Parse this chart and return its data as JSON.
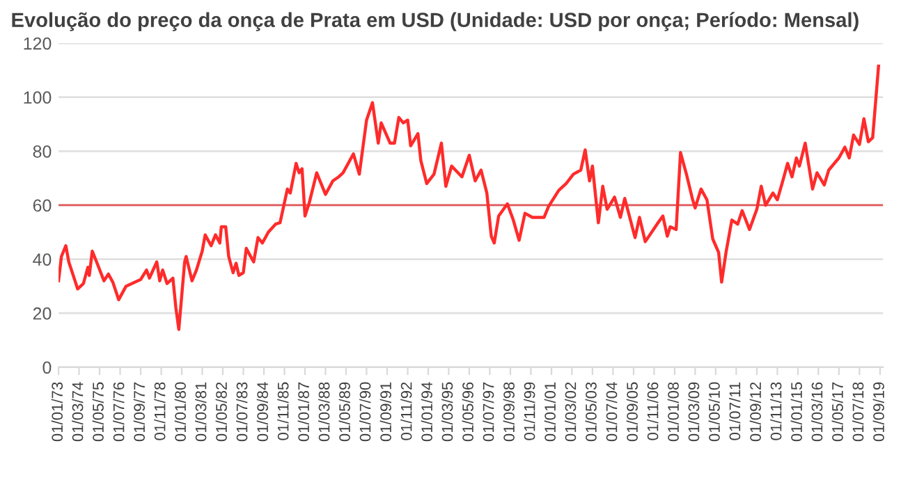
{
  "chart_data": {
    "type": "line",
    "title": "Evolução do preço da onça de Prata em USD (Unidade: USD por onça; Período: Mensal)",
    "x": [
      "1973-01",
      "1973-03",
      "1973-06",
      "1973-08",
      "1973-11",
      "1974-02",
      "1974-06",
      "1974-09",
      "1974-10",
      "1974-12",
      "1975-03",
      "1975-08",
      "1975-11",
      "1976-02",
      "1976-06",
      "1976-11",
      "1977-09",
      "1978-01",
      "1978-03",
      "1978-08",
      "1978-10",
      "1978-12",
      "1979-03",
      "1979-07",
      "1979-09",
      "1979-11",
      "1980-03",
      "1980-04",
      "1980-08",
      "1980-11",
      "1981-03",
      "1981-05",
      "1981-09",
      "1981-12",
      "1982-03",
      "1982-04",
      "1982-07",
      "1982-09",
      "1982-12",
      "1983-02",
      "1983-04",
      "1983-07",
      "1983-09",
      "1983-12",
      "1984-02",
      "1984-05",
      "1984-08",
      "1984-12",
      "1985-05",
      "1985-08",
      "1986-01",
      "1986-03",
      "1986-07",
      "1986-09",
      "1986-11",
      "1987-01",
      "1987-04",
      "1987-09",
      "1988-03",
      "1988-08",
      "1988-12",
      "1989-03",
      "1989-10",
      "1990-02",
      "1990-07",
      "1990-11",
      "1991-03",
      "1991-05",
      "1991-11",
      "1992-02",
      "1992-05",
      "1992-08",
      "1992-11",
      "1993-01",
      "1993-06",
      "1993-08",
      "1993-12",
      "1994-05",
      "1994-10",
      "1995-01",
      "1995-05",
      "1995-12",
      "1996-05",
      "1996-09",
      "1997-01",
      "1997-05",
      "1997-08",
      "1997-10",
      "1998-01",
      "1998-07",
      "1998-11",
      "1999-03",
      "1999-07",
      "1999-12",
      "2000-08",
      "2000-11",
      "2001-06",
      "2001-11",
      "2002-04",
      "2002-09",
      "2002-12",
      "2003-03",
      "2003-05",
      "2003-09",
      "2003-12",
      "2004-03",
      "2004-08",
      "2004-12",
      "2005-03",
      "2005-10",
      "2006-01",
      "2006-05",
      "2007-01",
      "2007-05",
      "2007-08",
      "2007-10",
      "2008-02",
      "2008-05",
      "2008-09",
      "2009-01",
      "2009-03",
      "2009-07",
      "2009-11",
      "2010-03",
      "2010-07",
      "2010-09",
      "2010-12",
      "2011-04",
      "2011-08",
      "2011-11",
      "2012-04",
      "2012-09",
      "2012-12",
      "2013-03",
      "2013-08",
      "2013-11",
      "2014-03",
      "2014-06",
      "2014-09",
      "2014-12",
      "2015-02",
      "2015-06",
      "2015-11",
      "2016-02",
      "2016-07",
      "2016-10",
      "2017-05",
      "2017-09",
      "2017-12",
      "2018-03",
      "2018-07",
      "2018-10",
      "2019-01",
      "2019-04",
      "2019-08"
    ],
    "series": [
      {
        "color": "#ff2b2b",
        "values": [
          32,
          41,
          45,
          39,
          34,
          29,
          31,
          37,
          34,
          43,
          39,
          32,
          34.5,
          31.5,
          25,
          30,
          32.5,
          36,
          33,
          39,
          32,
          36,
          31,
          33,
          22,
          14,
          39,
          41,
          32,
          36,
          43,
          49,
          45,
          49,
          46,
          52,
          52,
          41,
          35,
          38.5,
          34,
          35,
          44,
          41,
          39,
          48,
          46,
          50,
          53,
          53.5,
          66,
          64.5,
          75.5,
          72,
          73.5,
          56,
          61,
          72,
          64,
          69,
          70.5,
          72,
          79,
          71.5,
          91.5,
          98,
          83,
          90.5,
          83,
          83,
          92.5,
          90.5,
          91.5,
          82,
          86.5,
          76.5,
          68,
          71.5,
          83,
          67,
          74.5,
          70.5,
          78.5,
          69,
          73,
          64.5,
          48.5,
          46,
          56,
          60.5,
          54.5,
          47,
          57,
          55.5,
          55.5,
          59.5,
          65.5,
          68,
          71.5,
          73,
          80.5,
          69,
          74.5,
          53.5,
          67,
          58.5,
          63,
          55.5,
          62.5,
          48,
          55.5,
          46.5,
          53,
          56,
          48.5,
          52,
          51,
          79.5,
          71.5,
          62.5,
          59,
          66,
          62,
          47.5,
          42.5,
          31.5,
          42.5,
          54.5,
          53,
          58,
          51,
          58.5,
          67,
          60,
          64.5,
          62,
          69.5,
          75.5,
          70.5,
          77.5,
          74.5,
          83,
          66,
          72,
          67.5,
          73,
          77.5,
          81.5,
          77.5,
          86,
          82.5,
          92,
          83.5,
          85,
          111.5
        ]
      }
    ],
    "xlim": [
      "1973-01",
      "2019-11"
    ],
    "xticks": [
      {
        "value": "1973-01",
        "label": "01/01/73"
      },
      {
        "value": "1974-03",
        "label": "01/03/74"
      },
      {
        "value": "1975-05",
        "label": "01/05/75"
      },
      {
        "value": "1976-07",
        "label": "01/07/76"
      },
      {
        "value": "1977-09",
        "label": "01/09/77"
      },
      {
        "value": "1978-11",
        "label": "01/11/78"
      },
      {
        "value": "1980-01",
        "label": "01/01/80"
      },
      {
        "value": "1981-03",
        "label": "01/03/81"
      },
      {
        "value": "1982-05",
        "label": "01/05/82"
      },
      {
        "value": "1983-07",
        "label": "01/07/83"
      },
      {
        "value": "1984-09",
        "label": "01/09/84"
      },
      {
        "value": "1985-11",
        "label": "01/11/85"
      },
      {
        "value": "1987-01",
        "label": "01/01/87"
      },
      {
        "value": "1988-03",
        "label": "01/03/88"
      },
      {
        "value": "1989-05",
        "label": "01/05/89"
      },
      {
        "value": "1990-07",
        "label": "01/07/90"
      },
      {
        "value": "1991-09",
        "label": "01/09/91"
      },
      {
        "value": "1992-11",
        "label": "01/11/92"
      },
      {
        "value": "1994-01",
        "label": "01/01/94"
      },
      {
        "value": "1995-03",
        "label": "01/03/95"
      },
      {
        "value": "1996-05",
        "label": "01/05/96"
      },
      {
        "value": "1997-07",
        "label": "01/07/97"
      },
      {
        "value": "1998-09",
        "label": "01/09/98"
      },
      {
        "value": "1999-11",
        "label": "01/11/99"
      },
      {
        "value": "2001-01",
        "label": "01/01/01"
      },
      {
        "value": "2002-03",
        "label": "01/03/02"
      },
      {
        "value": "2003-05",
        "label": "01/05/03"
      },
      {
        "value": "2004-07",
        "label": "01/07/04"
      },
      {
        "value": "2005-09",
        "label": "01/09/05"
      },
      {
        "value": "2006-11",
        "label": "01/11/06"
      },
      {
        "value": "2008-01",
        "label": "01/01/08"
      },
      {
        "value": "2009-03",
        "label": "01/03/09"
      },
      {
        "value": "2010-05",
        "label": "01/05/10"
      },
      {
        "value": "2011-07",
        "label": "01/07/11"
      },
      {
        "value": "2012-09",
        "label": "01/09/12"
      },
      {
        "value": "2013-11",
        "label": "01/11/13"
      },
      {
        "value": "2015-01",
        "label": "01/01/15"
      },
      {
        "value": "2016-03",
        "label": "01/03/16"
      },
      {
        "value": "2017-05",
        "label": "01/05/17"
      },
      {
        "value": "2018-07",
        "label": "01/07/18"
      },
      {
        "value": "2019-09",
        "label": "01/09/19"
      }
    ],
    "ylim": [
      0,
      120
    ],
    "yticks": [
      0,
      20,
      40,
      60,
      80,
      100,
      120
    ],
    "ref_lines": [
      {
        "axis": "y",
        "value": 60,
        "color": "#e05a5a"
      }
    ],
    "grid": "y",
    "marker": "none",
    "line_style": "solid"
  }
}
